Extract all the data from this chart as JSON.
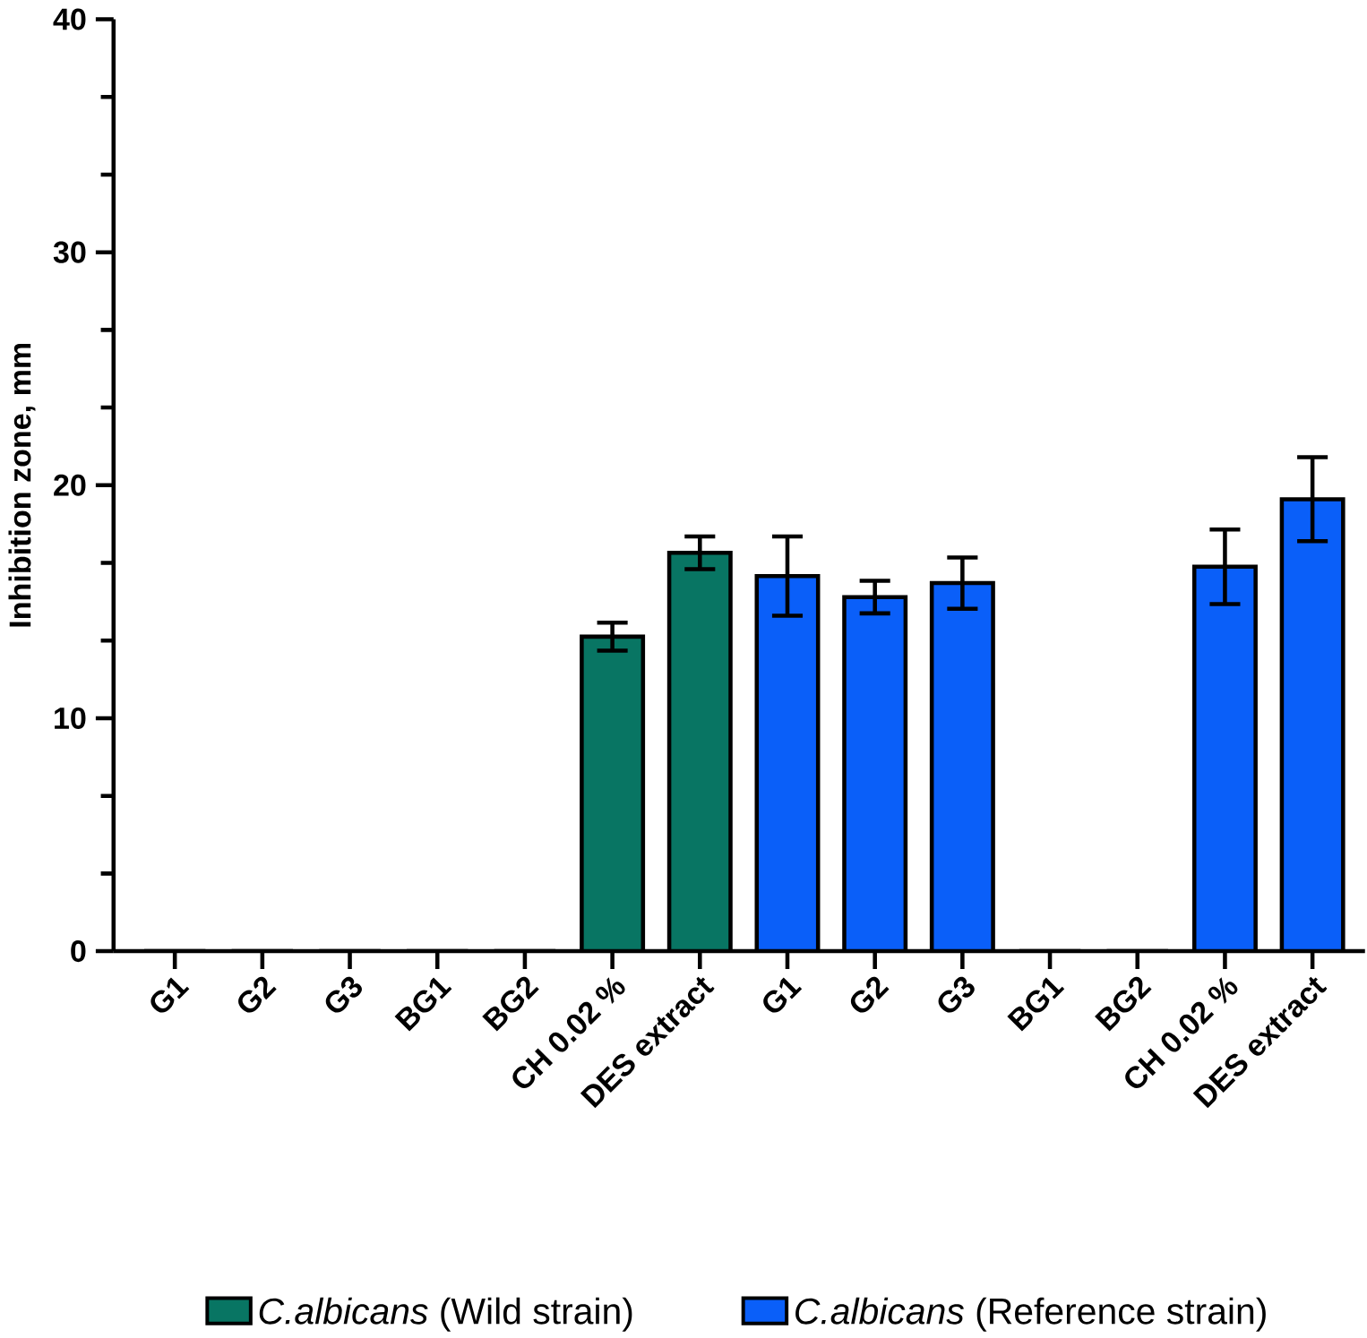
{
  "chart_data": {
    "type": "bar",
    "ylabel": "Inhibition zone, mm",
    "categories": [
      "G1",
      "G2",
      "G3",
      "BG1",
      "BG2",
      "CH 0.02 %",
      "DES extract",
      "G1",
      "G2",
      "G3",
      "BG1",
      "BG2",
      "CH 0.02 %",
      "DES extract"
    ],
    "series": [
      {
        "name": "*C.albicans* (Wild strain)",
        "color": "#087563",
        "values": [
          0,
          0,
          0,
          0,
          0,
          13.5,
          17.1,
          null,
          null,
          null,
          null,
          null,
          null,
          null
        ],
        "errors": [
          null,
          null,
          null,
          null,
          null,
          0.6,
          0.7,
          null,
          null,
          null,
          null,
          null,
          null,
          null
        ]
      },
      {
        "name": "*C.albicans* (Reference strain)",
        "color": "#0a5ff9",
        "values": [
          null,
          null,
          null,
          null,
          null,
          null,
          null,
          16.1,
          15.2,
          15.8,
          0,
          0,
          16.5,
          19.4
        ],
        "errors": [
          null,
          null,
          null,
          null,
          null,
          null,
          null,
          1.7,
          0.7,
          1.1,
          null,
          null,
          1.6,
          1.8
        ]
      }
    ],
    "ylim": [
      0,
      40
    ],
    "yticks": [
      0,
      10,
      20,
      30,
      40
    ],
    "legend": "bottom",
    "grid": false
  }
}
